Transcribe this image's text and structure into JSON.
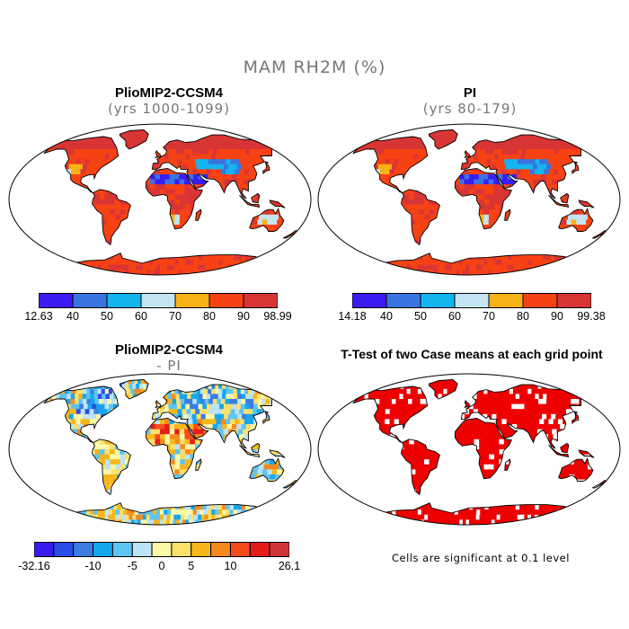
{
  "title": "MAM RH2M (%)",
  "panels": {
    "top_left": {
      "title": "PlioMIP2-CCSM4",
      "subtitle": "(yrs 1000-1099)",
      "colorbar": {
        "labels": [
          "12.63",
          "40",
          "50",
          "60",
          "70",
          "80",
          "90",
          "98.99"
        ],
        "colors": [
          "#3b1cf2",
          "#3a74e0",
          "#14b4ee",
          "#c3e4f2",
          "#f7b316",
          "#f74214",
          "#d83535"
        ]
      }
    },
    "top_right": {
      "title": "PI",
      "subtitle": "(yrs 80-179)",
      "colorbar": {
        "labels": [
          "14.18",
          "40",
          "50",
          "60",
          "70",
          "80",
          "90",
          "99.38"
        ],
        "colors": [
          "#3b1cf2",
          "#3a74e0",
          "#14b4ee",
          "#c3e4f2",
          "#f7b316",
          "#f74214",
          "#d83535"
        ]
      }
    },
    "bottom_left": {
      "title": "PlioMIP2-CCSM4",
      "subtitle": "- PI",
      "colorbar": {
        "labels": [
          "-32.16",
          "-10",
          "-5",
          "0",
          "5",
          "10",
          "26.1"
        ],
        "colors": [
          "#3a1cf0",
          "#2a4ce6",
          "#3a7ce2",
          "#16a6ee",
          "#5ec4f2",
          "#bce4f6",
          "#fbf8a8",
          "#fbe06c",
          "#f7b61c",
          "#f78a1c",
          "#f74a1c",
          "#e41c1c",
          "#cf3535"
        ]
      }
    },
    "bottom_right": {
      "title": "T-Test of two Case means at each grid point",
      "note": "Cells are significant at 0.1 level"
    }
  },
  "colors": {
    "land_outline": "#000000",
    "ocean": "#ffffff",
    "significant": "#ee0000"
  }
}
